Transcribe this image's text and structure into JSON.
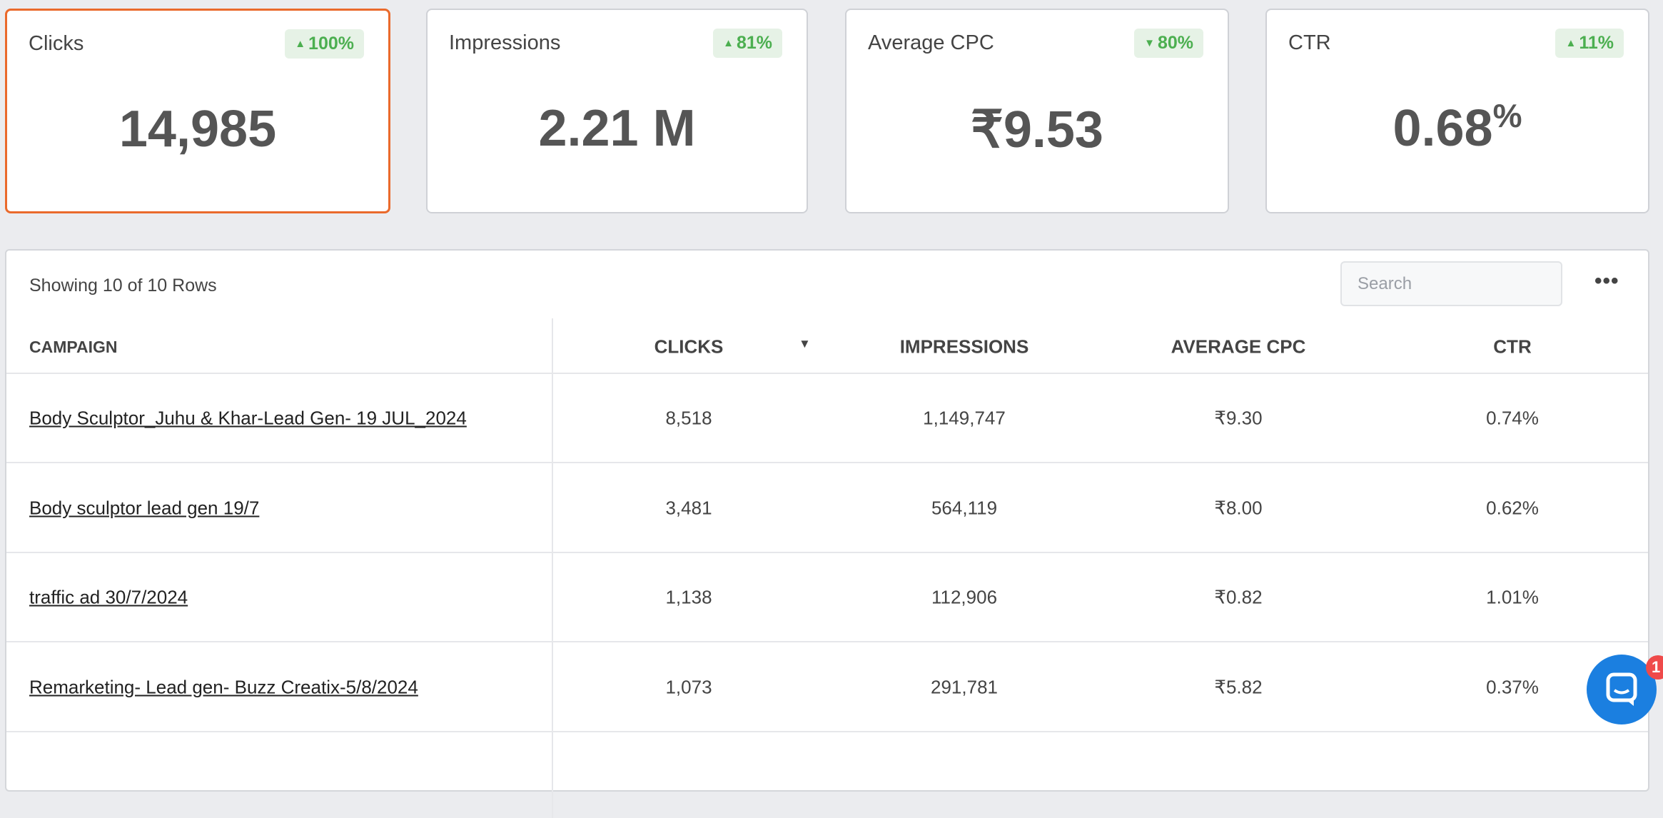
{
  "cards": [
    {
      "label": "Clicks",
      "value": "14,985",
      "change": "100%",
      "direction": "up",
      "selected": true
    },
    {
      "label": "Impressions",
      "value": "2.21 M",
      "change": "81%",
      "direction": "up",
      "selected": false
    },
    {
      "label": "Average CPC",
      "value": "₹9.53",
      "change": "80%",
      "direction": "down",
      "selected": false
    },
    {
      "label": "CTR",
      "value": "0.68",
      "unit": "%",
      "change": "11%",
      "direction": "up",
      "selected": false
    }
  ],
  "table": {
    "summary": "Showing 10 of 10 Rows",
    "search_placeholder": "Search",
    "columns": [
      "CAMPAIGN",
      "CLICKS",
      "IMPRESSIONS",
      "AVERAGE CPC",
      "CTR"
    ],
    "rows": [
      [
        "Body Sculptor_Juhu & Khar-Lead Gen- 19 JUL_2024",
        "8,518",
        "1,149,747",
        "₹9.30",
        "0.74%"
      ],
      [
        "Body sculptor lead gen 19/7",
        "3,481",
        "564,119",
        "₹8.00",
        "0.62%"
      ],
      [
        "traffic ad 30/7/2024",
        "1,138",
        "112,906",
        "₹0.82",
        "1.01%"
      ],
      [
        "Remarketing- Lead gen- Buzz Creatix-5/8/2024",
        "1,073",
        "291,781",
        "₹5.82",
        "0.37%"
      ]
    ]
  },
  "chat": {
    "badge": "1"
  }
}
